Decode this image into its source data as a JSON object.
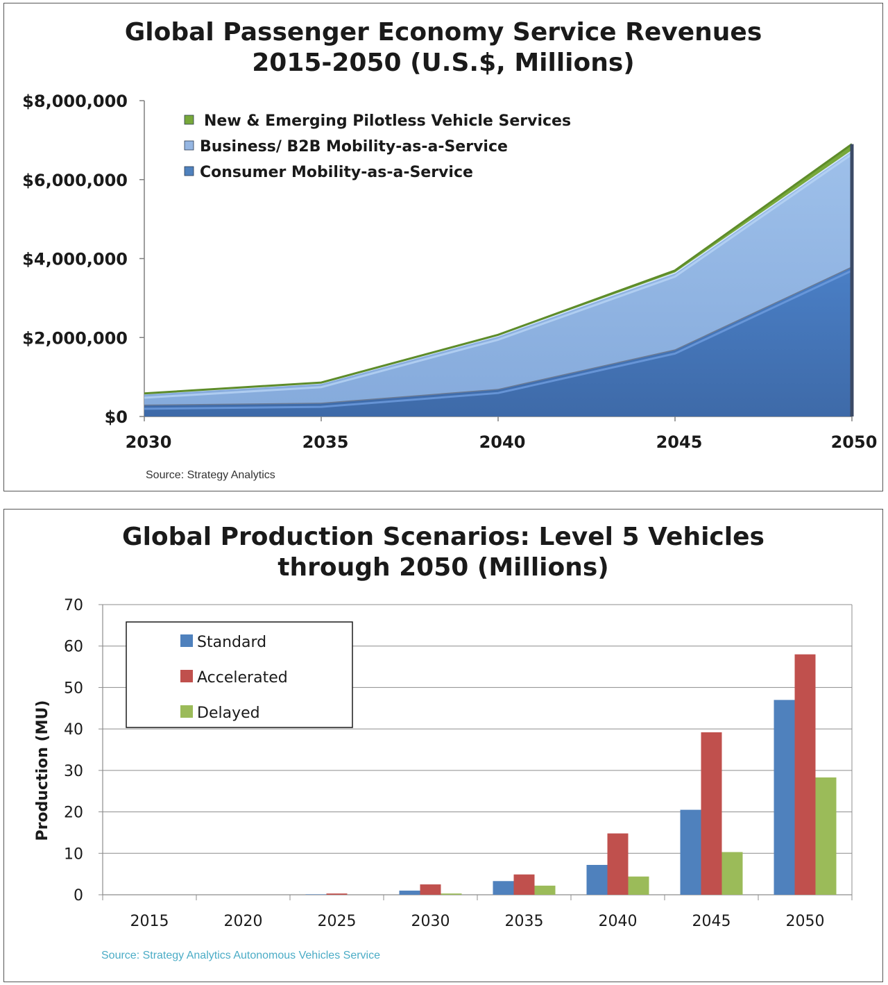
{
  "chart_data": [
    {
      "type": "area",
      "stacked": true,
      "title": [
        "Global Passenger Economy Service Revenues",
        "2015-2050 (U.S.$, Millions)"
      ],
      "x": [
        "2030",
        "2035",
        "2040",
        "2045",
        "2050"
      ],
      "series": [
        {
          "name": "Consumer Mobility-as-a-Service",
          "values": [
            300000,
            350000,
            700000,
            1700000,
            3800000
          ],
          "color": "#4f81bd"
        },
        {
          "name": "Business/ B2B Mobility-as-a-Service",
          "values": [
            280000,
            500000,
            1350000,
            1950000,
            2950000
          ],
          "color": "#95b6e2"
        },
        {
          "name": "New & Emerging Pilotless Vehicle Services",
          "values": [
            5000,
            10000,
            20000,
            50000,
            150000
          ],
          "color": "#77a83a"
        }
      ],
      "y_ticks": [
        "$0",
        "$2,000,000",
        "$4,000,000",
        "$6,000,000",
        "$8,000,000"
      ],
      "ylim": [
        0,
        8000000
      ],
      "legend_order": [
        "New & Emerging Pilotless Vehicle Services",
        "Business/ B2B Mobility-as-a-Service",
        "Consumer Mobility-as-a-Service"
      ],
      "legend_position": "top-left",
      "grid": false,
      "source": "Source: Strategy Analytics"
    },
    {
      "type": "bar",
      "title": [
        "Global Production Scenarios: Level 5 Vehicles",
        "through 2050 (Millions)"
      ],
      "categories": [
        "2015",
        "2020",
        "2025",
        "2030",
        "2035",
        "2040",
        "2045",
        "2050"
      ],
      "series": [
        {
          "name": "Standard",
          "values": [
            0,
            0,
            0.1,
            1,
            3.3,
            7.2,
            20.5,
            47
          ],
          "color": "#4f81bd"
        },
        {
          "name": "Accelerated",
          "values": [
            0,
            0,
            0.3,
            2.5,
            4.9,
            14.8,
            39.2,
            58
          ],
          "color": "#c0504d"
        },
        {
          "name": "Delayed",
          "values": [
            0,
            0,
            0,
            0.3,
            2.2,
            4.4,
            10.3,
            28.3
          ],
          "color": "#9bbb59"
        }
      ],
      "ylabel": "Production (MU)",
      "y_ticks": [
        "0",
        "10",
        "20",
        "30",
        "40",
        "50",
        "60",
        "70"
      ],
      "ylim": [
        0,
        70
      ],
      "grid": true,
      "legend_position": "top-left",
      "source": "Source: Strategy Analytics Autonomous Vehicles Service",
      "source_color": "#4bacc6"
    }
  ]
}
